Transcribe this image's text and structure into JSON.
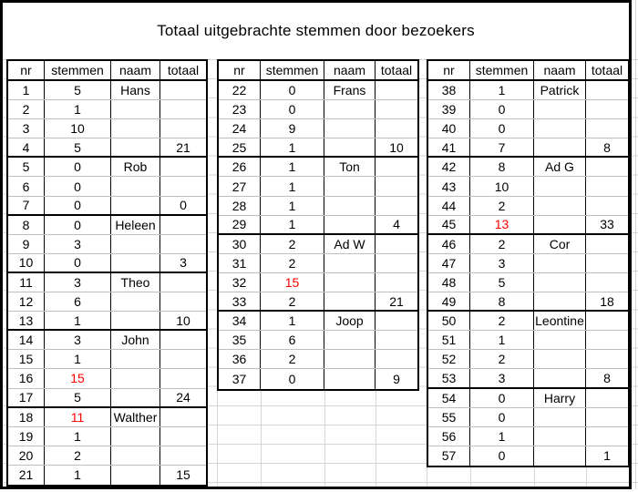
{
  "title": "Totaal uitgebrachte stemmen door bezoekers",
  "columns": [
    "nr",
    "stemmen",
    "naam",
    "totaal"
  ],
  "colors": {
    "highlight": "#ff0000",
    "border": "#000000",
    "row_line": "#bfbfbf",
    "gridline": "#d6d6d6"
  },
  "tables": [
    {
      "rows": [
        {
          "nr": "1",
          "stemmen": "5",
          "naam": "Hans"
        },
        {
          "nr": "2",
          "stemmen": "1"
        },
        {
          "nr": "3",
          "stemmen": "10"
        },
        {
          "nr": "4",
          "stemmen": "5",
          "totaal": "21"
        },
        {
          "nr": "5",
          "stemmen": "0",
          "naam": "Rob"
        },
        {
          "nr": "6",
          "stemmen": "0"
        },
        {
          "nr": "7",
          "stemmen": "0",
          "totaal": "0"
        },
        {
          "nr": "8",
          "stemmen": "0",
          "naam": "Heleen"
        },
        {
          "nr": "9",
          "stemmen": "3"
        },
        {
          "nr": "10",
          "stemmen": "0",
          "totaal": "3"
        },
        {
          "nr": "11",
          "stemmen": "3",
          "naam": "Theo"
        },
        {
          "nr": "12",
          "stemmen": "6"
        },
        {
          "nr": "13",
          "stemmen": "1",
          "totaal": "10"
        },
        {
          "nr": "14",
          "stemmen": "3",
          "naam": "John"
        },
        {
          "nr": "15",
          "stemmen": "1"
        },
        {
          "nr": "16",
          "stemmen": "15",
          "red": true
        },
        {
          "nr": "17",
          "stemmen": "5",
          "totaal": "24"
        },
        {
          "nr": "18",
          "stemmen": "11",
          "naam": "Walther",
          "red": true
        },
        {
          "nr": "19",
          "stemmen": "1"
        },
        {
          "nr": "20",
          "stemmen": "2"
        },
        {
          "nr": "21",
          "stemmen": "1",
          "totaal": "15"
        }
      ]
    },
    {
      "rows": [
        {
          "nr": "22",
          "stemmen": "0",
          "naam": "Frans"
        },
        {
          "nr": "23",
          "stemmen": "0"
        },
        {
          "nr": "24",
          "stemmen": "9"
        },
        {
          "nr": "25",
          "stemmen": "1",
          "totaal": "10"
        },
        {
          "nr": "26",
          "stemmen": "1",
          "naam": "Ton"
        },
        {
          "nr": "27",
          "stemmen": "1"
        },
        {
          "nr": "28",
          "stemmen": "1"
        },
        {
          "nr": "29",
          "stemmen": "1",
          "totaal": "4"
        },
        {
          "nr": "30",
          "stemmen": "2",
          "naam": "Ad W"
        },
        {
          "nr": "31",
          "stemmen": "2"
        },
        {
          "nr": "32",
          "stemmen": "15",
          "red": true
        },
        {
          "nr": "33",
          "stemmen": "2",
          "totaal": "21"
        },
        {
          "nr": "34",
          "stemmen": "1",
          "naam": "Joop"
        },
        {
          "nr": "35",
          "stemmen": "6"
        },
        {
          "nr": "36",
          "stemmen": "2"
        },
        {
          "nr": "37",
          "stemmen": "0",
          "totaal": "9"
        }
      ]
    },
    {
      "rows": [
        {
          "nr": "38",
          "stemmen": "1",
          "naam": "Patrick"
        },
        {
          "nr": "39",
          "stemmen": "0"
        },
        {
          "nr": "40",
          "stemmen": "0"
        },
        {
          "nr": "41",
          "stemmen": "7",
          "totaal": "8"
        },
        {
          "nr": "42",
          "stemmen": "8",
          "naam": "Ad G"
        },
        {
          "nr": "43",
          "stemmen": "10"
        },
        {
          "nr": "44",
          "stemmen": "2"
        },
        {
          "nr": "45",
          "stemmen": "13",
          "totaal": "33",
          "red": true
        },
        {
          "nr": "46",
          "stemmen": "2",
          "naam": "Cor"
        },
        {
          "nr": "47",
          "stemmen": "3"
        },
        {
          "nr": "48",
          "stemmen": "5"
        },
        {
          "nr": "49",
          "stemmen": "8",
          "totaal": "18"
        },
        {
          "nr": "50",
          "stemmen": "2",
          "naam": "Leontine"
        },
        {
          "nr": "51",
          "stemmen": "1"
        },
        {
          "nr": "52",
          "stemmen": "2"
        },
        {
          "nr": "53",
          "stemmen": "3",
          "totaal": "8"
        },
        {
          "nr": "54",
          "stemmen": "0",
          "naam": "Harry"
        },
        {
          "nr": "55",
          "stemmen": "0"
        },
        {
          "nr": "56",
          "stemmen": "1"
        },
        {
          "nr": "57",
          "stemmen": "0",
          "totaal": "1"
        }
      ]
    }
  ]
}
